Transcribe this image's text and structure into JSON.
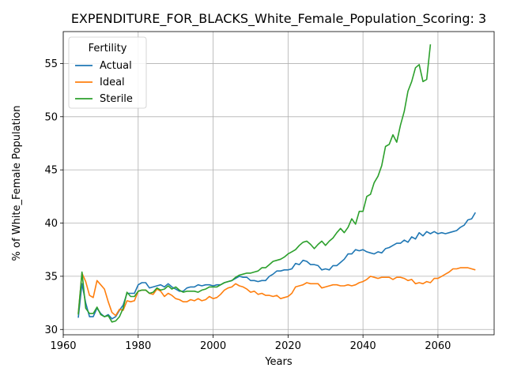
{
  "chart_data": {
    "type": "line",
    "title": "EXPENDITURE_FOR_BLACKS_White_Female_Population_Scoring: 3",
    "xlabel": "Years",
    "ylabel": "% of White_Female Population",
    "xlim": [
      1960,
      2075
    ],
    "ylim": [
      29.5,
      58
    ],
    "xticks": [
      1960,
      1980,
      2000,
      2020,
      2040,
      2060
    ],
    "yticks": [
      30,
      35,
      40,
      45,
      50,
      55
    ],
    "grid": true,
    "legend": {
      "title": "Fertility",
      "placement": "top-left"
    },
    "series": [
      {
        "name": "Actual",
        "color": "#1f77b4",
        "points": [
          [
            1964,
            31.1
          ],
          [
            1965,
            34.3
          ],
          [
            1966,
            32.5
          ],
          [
            1967,
            31.2
          ],
          [
            1968,
            31.2
          ],
          [
            1969,
            32.0
          ],
          [
            1970,
            31.5
          ],
          [
            1971,
            31.2
          ],
          [
            1972,
            31.4
          ],
          [
            1973,
            31.0
          ],
          [
            1974,
            31.2
          ],
          [
            1975,
            31.8
          ],
          [
            1976,
            32.3
          ],
          [
            1977,
            33.4
          ],
          [
            1978,
            33.4
          ],
          [
            1979,
            33.4
          ],
          [
            1980,
            34.2
          ],
          [
            1981,
            34.4
          ],
          [
            1982,
            34.4
          ],
          [
            1983,
            33.9
          ],
          [
            1984,
            34.0
          ],
          [
            1985,
            34.1
          ],
          [
            1986,
            34.2
          ],
          [
            1987,
            34.0
          ],
          [
            1988,
            34.3
          ],
          [
            1989,
            34.0
          ],
          [
            1990,
            33.8
          ],
          [
            1991,
            33.6
          ],
          [
            1992,
            33.6
          ],
          [
            1993,
            33.9
          ],
          [
            1994,
            34.0
          ],
          [
            1995,
            34.0
          ],
          [
            1996,
            34.2
          ],
          [
            1997,
            34.1
          ],
          [
            1998,
            34.2
          ],
          [
            1999,
            34.2
          ],
          [
            2000,
            34.1
          ],
          [
            2001,
            34.2
          ],
          [
            2002,
            34.2
          ],
          [
            2003,
            34.4
          ],
          [
            2004,
            34.5
          ],
          [
            2005,
            34.6
          ],
          [
            2006,
            34.8
          ],
          [
            2007,
            35.0
          ],
          [
            2008,
            34.9
          ],
          [
            2009,
            34.9
          ],
          [
            2010,
            34.6
          ],
          [
            2011,
            34.6
          ],
          [
            2012,
            34.5
          ],
          [
            2013,
            34.6
          ],
          [
            2014,
            34.6
          ],
          [
            2015,
            35.0
          ],
          [
            2016,
            35.2
          ],
          [
            2017,
            35.5
          ],
          [
            2018,
            35.5
          ],
          [
            2019,
            35.6
          ],
          [
            2020,
            35.6
          ],
          [
            2021,
            35.7
          ],
          [
            2022,
            36.2
          ],
          [
            2023,
            36.1
          ],
          [
            2024,
            36.5
          ],
          [
            2025,
            36.4
          ],
          [
            2026,
            36.1
          ],
          [
            2027,
            36.1
          ],
          [
            2028,
            36.0
          ],
          [
            2029,
            35.6
          ],
          [
            2030,
            35.7
          ],
          [
            2031,
            35.6
          ],
          [
            2032,
            36.0
          ],
          [
            2033,
            36.0
          ],
          [
            2034,
            36.3
          ],
          [
            2035,
            36.6
          ],
          [
            2036,
            37.1
          ],
          [
            2037,
            37.1
          ],
          [
            2038,
            37.5
          ],
          [
            2039,
            37.4
          ],
          [
            2040,
            37.5
          ],
          [
            2041,
            37.3
          ],
          [
            2042,
            37.2
          ],
          [
            2043,
            37.1
          ],
          [
            2044,
            37.3
          ],
          [
            2045,
            37.2
          ],
          [
            2046,
            37.6
          ],
          [
            2047,
            37.7
          ],
          [
            2048,
            37.9
          ],
          [
            2049,
            38.1
          ],
          [
            2050,
            38.1
          ],
          [
            2051,
            38.4
          ],
          [
            2052,
            38.2
          ],
          [
            2053,
            38.7
          ],
          [
            2054,
            38.5
          ],
          [
            2055,
            39.1
          ],
          [
            2056,
            38.8
          ],
          [
            2057,
            39.2
          ],
          [
            2058,
            39.0
          ],
          [
            2059,
            39.2
          ],
          [
            2060,
            39.0
          ],
          [
            2061,
            39.1
          ],
          [
            2062,
            39.0
          ],
          [
            2063,
            39.1
          ],
          [
            2064,
            39.2
          ],
          [
            2065,
            39.3
          ],
          [
            2066,
            39.6
          ],
          [
            2067,
            39.8
          ],
          [
            2068,
            40.3
          ],
          [
            2069,
            40.4
          ],
          [
            2070,
            41.0
          ]
        ]
      },
      {
        "name": "Ideal",
        "color": "#ff7f0e",
        "points": [
          [
            1964,
            31.5
          ],
          [
            1965,
            35.3
          ],
          [
            1966,
            34.5
          ],
          [
            1967,
            33.2
          ],
          [
            1968,
            33.0
          ],
          [
            1969,
            34.6
          ],
          [
            1970,
            34.2
          ],
          [
            1971,
            33.8
          ],
          [
            1972,
            32.6
          ],
          [
            1973,
            31.6
          ],
          [
            1974,
            31.3
          ],
          [
            1975,
            31.9
          ],
          [
            1976,
            31.8
          ],
          [
            1977,
            32.7
          ],
          [
            1978,
            32.6
          ],
          [
            1979,
            32.7
          ],
          [
            1980,
            33.6
          ],
          [
            1981,
            33.7
          ],
          [
            1982,
            33.7
          ],
          [
            1983,
            33.4
          ],
          [
            1984,
            33.3
          ],
          [
            1985,
            33.8
          ],
          [
            1986,
            33.6
          ],
          [
            1987,
            33.1
          ],
          [
            1988,
            33.4
          ],
          [
            1989,
            33.2
          ],
          [
            1990,
            32.9
          ],
          [
            1991,
            32.8
          ],
          [
            1992,
            32.6
          ],
          [
            1993,
            32.6
          ],
          [
            1994,
            32.8
          ],
          [
            1995,
            32.7
          ],
          [
            1996,
            32.9
          ],
          [
            1997,
            32.7
          ],
          [
            1998,
            32.8
          ],
          [
            1999,
            33.1
          ],
          [
            2000,
            32.9
          ],
          [
            2001,
            33.0
          ],
          [
            2002,
            33.3
          ],
          [
            2003,
            33.7
          ],
          [
            2004,
            33.9
          ],
          [
            2005,
            34.0
          ],
          [
            2006,
            34.3
          ],
          [
            2007,
            34.1
          ],
          [
            2008,
            34.0
          ],
          [
            2009,
            33.8
          ],
          [
            2010,
            33.5
          ],
          [
            2011,
            33.6
          ],
          [
            2012,
            33.3
          ],
          [
            2013,
            33.4
          ],
          [
            2014,
            33.2
          ],
          [
            2015,
            33.2
          ],
          [
            2016,
            33.1
          ],
          [
            2017,
            33.2
          ],
          [
            2018,
            32.9
          ],
          [
            2019,
            33.0
          ],
          [
            2020,
            33.1
          ],
          [
            2021,
            33.4
          ],
          [
            2022,
            34.0
          ],
          [
            2023,
            34.1
          ],
          [
            2024,
            34.2
          ],
          [
            2025,
            34.4
          ],
          [
            2026,
            34.3
          ],
          [
            2027,
            34.3
          ],
          [
            2028,
            34.3
          ],
          [
            2029,
            33.9
          ],
          [
            2030,
            34.0
          ],
          [
            2031,
            34.1
          ],
          [
            2032,
            34.2
          ],
          [
            2033,
            34.2
          ],
          [
            2034,
            34.1
          ],
          [
            2035,
            34.1
          ],
          [
            2036,
            34.2
          ],
          [
            2037,
            34.1
          ],
          [
            2038,
            34.2
          ],
          [
            2039,
            34.4
          ],
          [
            2040,
            34.5
          ],
          [
            2041,
            34.7
          ],
          [
            2042,
            35.0
          ],
          [
            2043,
            34.9
          ],
          [
            2044,
            34.8
          ],
          [
            2045,
            34.9
          ],
          [
            2046,
            34.9
          ],
          [
            2047,
            34.9
          ],
          [
            2048,
            34.7
          ],
          [
            2049,
            34.9
          ],
          [
            2050,
            34.9
          ],
          [
            2051,
            34.8
          ],
          [
            2052,
            34.6
          ],
          [
            2053,
            34.7
          ],
          [
            2054,
            34.3
          ],
          [
            2055,
            34.4
          ],
          [
            2056,
            34.3
          ],
          [
            2057,
            34.5
          ],
          [
            2058,
            34.4
          ],
          [
            2059,
            34.8
          ],
          [
            2060,
            34.8
          ],
          [
            2061,
            35.0
          ],
          [
            2062,
            35.2
          ],
          [
            2063,
            35.4
          ],
          [
            2064,
            35.7
          ],
          [
            2065,
            35.7
          ],
          [
            2066,
            35.8
          ],
          [
            2067,
            35.8
          ],
          [
            2068,
            35.8
          ],
          [
            2069,
            35.7
          ],
          [
            2070,
            35.6
          ]
        ]
      },
      {
        "name": "Sterile",
        "color": "#2ca02c",
        "points": [
          [
            1964,
            31.4
          ],
          [
            1965,
            35.4
          ],
          [
            1966,
            32.0
          ],
          [
            1967,
            31.5
          ],
          [
            1968,
            31.5
          ],
          [
            1969,
            32.1
          ],
          [
            1970,
            31.4
          ],
          [
            1971,
            31.2
          ],
          [
            1972,
            31.3
          ],
          [
            1973,
            30.7
          ],
          [
            1974,
            30.8
          ],
          [
            1975,
            31.2
          ],
          [
            1976,
            32.0
          ],
          [
            1977,
            33.5
          ],
          [
            1978,
            33.1
          ],
          [
            1979,
            33.1
          ],
          [
            1980,
            33.6
          ],
          [
            1981,
            33.7
          ],
          [
            1982,
            33.7
          ],
          [
            1983,
            33.4
          ],
          [
            1984,
            33.5
          ],
          [
            1985,
            33.9
          ],
          [
            1986,
            33.7
          ],
          [
            1987,
            33.8
          ],
          [
            1988,
            34.1
          ],
          [
            1989,
            33.8
          ],
          [
            1990,
            34.0
          ],
          [
            1991,
            33.7
          ],
          [
            1992,
            33.5
          ],
          [
            1993,
            33.6
          ],
          [
            1994,
            33.6
          ],
          [
            1995,
            33.6
          ],
          [
            1996,
            33.5
          ],
          [
            1997,
            33.7
          ],
          [
            1998,
            33.8
          ],
          [
            1999,
            34.0
          ],
          [
            2000,
            34.0
          ],
          [
            2001,
            34.0
          ],
          [
            2002,
            34.2
          ],
          [
            2003,
            34.4
          ],
          [
            2004,
            34.5
          ],
          [
            2005,
            34.6
          ],
          [
            2006,
            34.9
          ],
          [
            2007,
            35.1
          ],
          [
            2008,
            35.2
          ],
          [
            2009,
            35.3
          ],
          [
            2010,
            35.3
          ],
          [
            2011,
            35.4
          ],
          [
            2012,
            35.5
          ],
          [
            2013,
            35.8
          ],
          [
            2014,
            35.8
          ],
          [
            2015,
            36.1
          ],
          [
            2016,
            36.4
          ],
          [
            2017,
            36.5
          ],
          [
            2018,
            36.6
          ],
          [
            2019,
            36.8
          ],
          [
            2020,
            37.1
          ],
          [
            2021,
            37.3
          ],
          [
            2022,
            37.5
          ],
          [
            2023,
            37.9
          ],
          [
            2024,
            38.2
          ],
          [
            2025,
            38.3
          ],
          [
            2026,
            38.0
          ],
          [
            2027,
            37.6
          ],
          [
            2028,
            38.0
          ],
          [
            2029,
            38.3
          ],
          [
            2030,
            37.9
          ],
          [
            2031,
            38.3
          ],
          [
            2032,
            38.6
          ],
          [
            2033,
            39.1
          ],
          [
            2034,
            39.5
          ],
          [
            2035,
            39.1
          ],
          [
            2036,
            39.6
          ],
          [
            2037,
            40.4
          ],
          [
            2038,
            39.9
          ],
          [
            2039,
            41.1
          ],
          [
            2040,
            41.1
          ],
          [
            2041,
            42.5
          ],
          [
            2042,
            42.7
          ],
          [
            2043,
            43.8
          ],
          [
            2044,
            44.4
          ],
          [
            2045,
            45.4
          ],
          [
            2046,
            47.2
          ],
          [
            2047,
            47.4
          ],
          [
            2048,
            48.3
          ],
          [
            2049,
            47.6
          ],
          [
            2050,
            49.2
          ],
          [
            2051,
            50.5
          ],
          [
            2052,
            52.4
          ],
          [
            2053,
            53.3
          ],
          [
            2054,
            54.6
          ],
          [
            2055,
            54.9
          ],
          [
            2056,
            53.3
          ],
          [
            2057,
            53.5
          ],
          [
            2058,
            56.8
          ]
        ]
      }
    ]
  }
}
